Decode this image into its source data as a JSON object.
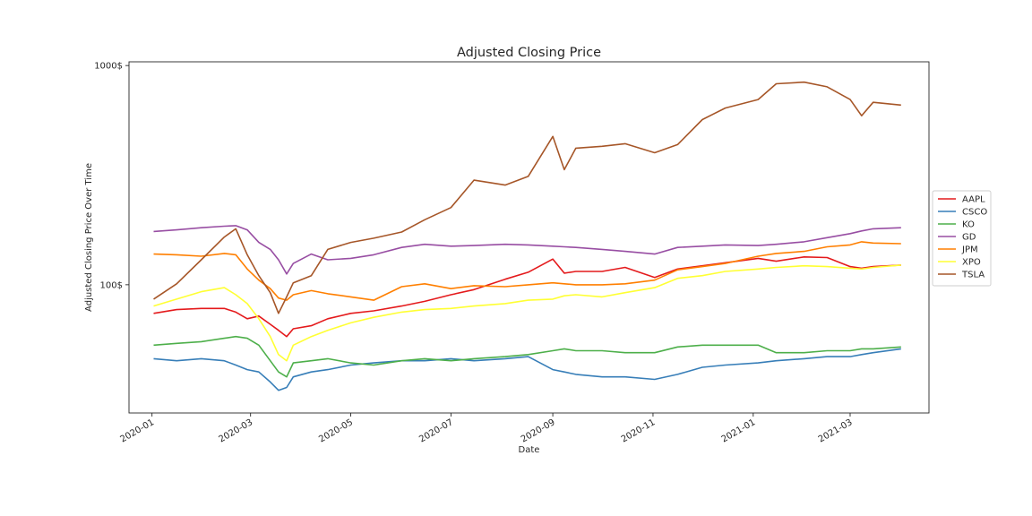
{
  "chart_data": {
    "type": "line",
    "title": "Adjusted Closing Price",
    "xlabel": "Date",
    "ylabel": "Adjusted Closing Price Over Time",
    "yscale": "log",
    "ylim": [
      26,
      1040
    ],
    "xlim": [
      "2019-12-18",
      "2021-04-18"
    ],
    "x_ticks": [
      "2020-01",
      "2020-03",
      "2020-05",
      "2020-07",
      "2020-09",
      "2020-11",
      "2021-01",
      "2021-03"
    ],
    "y_ticks": [
      {
        "value": 100,
        "label": "100$"
      },
      {
        "value": 1000,
        "label": "1000$"
      }
    ],
    "grid": false,
    "legend_position": "right",
    "dates": [
      "2020-01-02",
      "2020-01-16",
      "2020-01-31",
      "2020-02-14",
      "2020-02-21",
      "2020-02-28",
      "2020-03-06",
      "2020-03-13",
      "2020-03-18",
      "2020-03-23",
      "2020-03-27",
      "2020-04-07",
      "2020-04-17",
      "2020-05-01",
      "2020-05-15",
      "2020-06-01",
      "2020-06-15",
      "2020-07-01",
      "2020-07-15",
      "2020-08-03",
      "2020-08-17",
      "2020-09-01",
      "2020-09-08",
      "2020-09-15",
      "2020-10-01",
      "2020-10-15",
      "2020-11-02",
      "2020-11-16",
      "2020-12-01",
      "2020-12-15",
      "2021-01-04",
      "2021-01-15",
      "2021-02-01",
      "2021-02-15",
      "2021-03-01",
      "2021-03-08",
      "2021-03-15",
      "2021-04-01"
    ],
    "series": [
      {
        "name": "AAPL",
        "color": "#e41a1c",
        "values": [
          74,
          77,
          78,
          78,
          75,
          70,
          72,
          66,
          62,
          58,
          63,
          65,
          70,
          74,
          76,
          80,
          84,
          90,
          95,
          106,
          114,
          131,
          113,
          115,
          115,
          120,
          108,
          118,
          122,
          126,
          132,
          128,
          134,
          133,
          121,
          119,
          121,
          123
        ]
      },
      {
        "name": "CSCO",
        "color": "#377eb8",
        "values": [
          46,
          45,
          46,
          45,
          43,
          41,
          40,
          36,
          33,
          34,
          38,
          40,
          41,
          43,
          44,
          45,
          45,
          46,
          45,
          46,
          47,
          41,
          40,
          39,
          38,
          38,
          37,
          39,
          42,
          43,
          44,
          45,
          46,
          47,
          47,
          48,
          49,
          51
        ]
      },
      {
        "name": "KO",
        "color": "#4daf4a",
        "values": [
          53,
          54,
          55,
          57,
          58,
          57,
          53,
          45,
          40,
          38,
          44,
          45,
          46,
          44,
          43,
          45,
          46,
          45,
          46,
          47,
          48,
          50,
          51,
          50,
          50,
          49,
          49,
          52,
          53,
          53,
          53,
          49,
          49,
          50,
          50,
          51,
          51,
          52
        ]
      },
      {
        "name": "GD",
        "color": "#984ea3",
        "values": [
          175,
          178,
          182,
          185,
          186,
          178,
          156,
          145,
          130,
          112,
          125,
          138,
          130,
          132,
          137,
          148,
          153,
          150,
          151,
          153,
          152,
          150,
          149,
          148,
          145,
          142,
          138,
          148,
          150,
          152,
          151,
          153,
          157,
          164,
          171,
          176,
          180,
          182
        ]
      },
      {
        "name": "JPM",
        "color": "#ff7f00",
        "values": [
          138,
          137,
          135,
          139,
          137,
          118,
          105,
          96,
          87,
          85,
          90,
          94,
          91,
          88,
          85,
          98,
          101,
          96,
          99,
          98,
          100,
          102,
          101,
          100,
          100,
          101,
          105,
          117,
          121,
          125,
          135,
          139,
          142,
          149,
          152,
          157,
          155,
          154
        ]
      },
      {
        "name": "XPO",
        "color": "#ffff33",
        "values": [
          80,
          86,
          93,
          97,
          90,
          82,
          70,
          58,
          48,
          45,
          53,
          58,
          62,
          67,
          71,
          75,
          77,
          78,
          80,
          82,
          85,
          86,
          89,
          90,
          88,
          92,
          97,
          107,
          110,
          115,
          118,
          120,
          122,
          121,
          119,
          118,
          120,
          123
        ]
      },
      {
        "name": "TSLA",
        "color": "#a65628",
        "values": [
          86,
          101,
          130,
          165,
          180,
          137,
          110,
          92,
          74,
          88,
          102,
          110,
          145,
          156,
          163,
          174,
          198,
          225,
          300,
          285,
          312,
          475,
          335,
          420,
          428,
          440,
          400,
          436,
          567,
          640,
          700,
          826,
          840,
          800,
          700,
          590,
          680,
          660
        ]
      }
    ]
  }
}
